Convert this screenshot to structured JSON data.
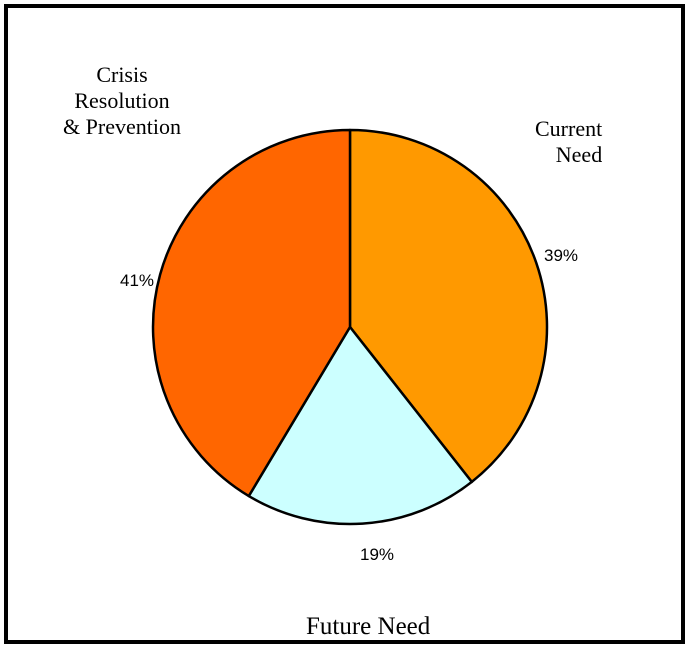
{
  "chart_data": {
    "type": "pie",
    "title": "",
    "categories": [
      "Current Need",
      "Future Need",
      "Crisis Resolution & Prevention"
    ],
    "category_lines": [
      [
        "Current",
        "Need"
      ],
      [
        "Future Need"
      ],
      [
        "Crisis",
        "Resolution",
        "& Prevention"
      ]
    ],
    "values": [
      39,
      19,
      41
    ],
    "labels": [
      "39%",
      "19%",
      "41%"
    ],
    "colors": [
      "#FF9900",
      "#CCFFFF",
      "#FF6600"
    ],
    "start_angle_deg": 0,
    "direction": "clockwise",
    "legend": "none"
  }
}
